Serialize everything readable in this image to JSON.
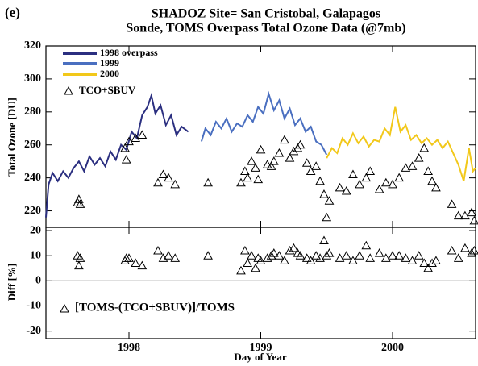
{
  "chart_data": [
    {
      "type": "line",
      "panel_label": "(e)",
      "title": "SHADOZ Site= San Cristobal, Galapagos",
      "subtitle": "Sonde, TOMS Overpass Total Ozone Data (@7mb)",
      "ylabel": "Total Ozone [DU]",
      "xlim": [
        1997.37,
        2000.63
      ],
      "ylim": [
        210,
        320
      ],
      "yticks": [
        220,
        240,
        260,
        280,
        300,
        320
      ],
      "series": [
        {
          "name": "1998 overpass",
          "color": "#2b2f80",
          "x": [
            1997.37,
            1997.39,
            1997.42,
            1997.46,
            1997.5,
            1997.54,
            1997.58,
            1997.62,
            1997.66,
            1997.7,
            1997.74,
            1997.78,
            1997.82,
            1997.86,
            1997.9,
            1997.94,
            1997.98,
            1998.02,
            1998.06,
            1998.1,
            1998.14,
            1998.17,
            1998.2,
            1998.24,
            1998.28,
            1998.32,
            1998.36,
            1998.4,
            1998.45
          ],
          "values": [
            216,
            236,
            243,
            238,
            244,
            240,
            246,
            250,
            244,
            253,
            248,
            252,
            247,
            256,
            251,
            260,
            257,
            268,
            264,
            278,
            283,
            290,
            279,
            284,
            272,
            278,
            266,
            271,
            268
          ]
        },
        {
          "name": "1999",
          "color": "#4a6fc0",
          "x": [
            1998.55,
            1998.58,
            1998.62,
            1998.66,
            1998.7,
            1998.74,
            1998.78,
            1998.82,
            1998.86,
            1998.9,
            1998.94,
            1998.98,
            1999.02,
            1999.06,
            1999.1,
            1999.14,
            1999.18,
            1999.22,
            1999.26,
            1999.3,
            1999.34,
            1999.38,
            1999.42,
            1999.46,
            1999.5
          ],
          "values": [
            262,
            270,
            266,
            274,
            270,
            276,
            268,
            273,
            271,
            278,
            274,
            283,
            279,
            291,
            281,
            287,
            276,
            282,
            272,
            276,
            268,
            271,
            262,
            260,
            254
          ]
        },
        {
          "name": "2000",
          "color": "#f2c81a",
          "x": [
            1999.5,
            1999.54,
            1999.58,
            1999.62,
            1999.66,
            1999.7,
            1999.74,
            1999.78,
            1999.82,
            1999.86,
            1999.9,
            1999.94,
            1999.98,
            2000.02,
            2000.06,
            2000.1,
            2000.14,
            2000.18,
            2000.22,
            2000.26,
            2000.3,
            2000.34,
            2000.38,
            2000.42,
            2000.46,
            2000.5,
            2000.54,
            2000.58,
            2000.61,
            2000.63
          ],
          "values": [
            252,
            258,
            255,
            264,
            260,
            267,
            261,
            265,
            259,
            263,
            262,
            270,
            266,
            283,
            268,
            272,
            263,
            266,
            261,
            264,
            260,
            263,
            258,
            262,
            255,
            248,
            238,
            258,
            244,
            246
          ]
        },
        {
          "name": "TCO+SBUV",
          "color": "#000000",
          "marker": "triangle",
          "x": [
            1997.61,
            1997.62,
            1997.63,
            1997.97,
            1997.98,
            1998.0,
            1998.05,
            1998.1,
            1998.22,
            1998.26,
            1998.3,
            1998.35,
            1998.6,
            1998.85,
            1998.88,
            1998.9,
            1998.93,
            1998.96,
            1998.98,
            1999.0,
            1999.05,
            1999.08,
            1999.1,
            1999.14,
            1999.18,
            1999.22,
            1999.25,
            1999.28,
            1999.3,
            1999.35,
            1999.38,
            1999.42,
            1999.45,
            1999.48,
            1999.5,
            1999.52,
            1999.6,
            1999.65,
            1999.7,
            1999.75,
            1999.8,
            1999.83,
            1999.9,
            1999.95,
            2000.0,
            2000.05,
            2000.1,
            2000.15,
            2000.2,
            2000.24,
            2000.27,
            2000.3,
            2000.33,
            2000.45,
            2000.5,
            2000.55,
            2000.6,
            2000.62
          ],
          "values": [
            225,
            227,
            224,
            258,
            251,
            262,
            264,
            266,
            237,
            242,
            240,
            236,
            237,
            237,
            244,
            240,
            250,
            246,
            239,
            257,
            248,
            247,
            250,
            255,
            263,
            252,
            256,
            258,
            260,
            249,
            244,
            247,
            238,
            230,
            216,
            226,
            234,
            232,
            242,
            236,
            240,
            244,
            233,
            237,
            236,
            240,
            246,
            247,
            252,
            258,
            244,
            238,
            234,
            224,
            217,
            217,
            219,
            214
          ]
        }
      ]
    },
    {
      "type": "scatter",
      "ylabel": "Diff [%]",
      "xlabel": "Day of Year",
      "xlim": [
        1997.37,
        2000.63
      ],
      "xticks": [
        1998,
        1999,
        2000
      ],
      "ylim": [
        -23,
        21.3
      ],
      "yticks": [
        -20,
        -10,
        0,
        10,
        20
      ],
      "series": [
        {
          "name": "[TOMS-(TCO+SBUV)]/TOMS",
          "color": "#000000",
          "marker": "triangle",
          "x": [
            1997.61,
            1997.62,
            1997.63,
            1997.97,
            1997.98,
            1998.0,
            1998.05,
            1998.1,
            1998.22,
            1998.26,
            1998.3,
            1998.35,
            1998.6,
            1998.85,
            1998.88,
            1998.9,
            1998.93,
            1998.96,
            1998.98,
            1999.0,
            1999.05,
            1999.08,
            1999.1,
            1999.14,
            1999.18,
            1999.22,
            1999.25,
            1999.28,
            1999.3,
            1999.35,
            1999.38,
            1999.42,
            1999.45,
            1999.48,
            1999.5,
            1999.52,
            1999.6,
            1999.65,
            1999.7,
            1999.75,
            1999.8,
            1999.83,
            1999.9,
            1999.95,
            2000.0,
            2000.05,
            2000.1,
            2000.15,
            2000.2,
            2000.24,
            2000.27,
            2000.3,
            2000.33,
            2000.45,
            2000.5,
            2000.55,
            2000.6,
            2000.62
          ],
          "values": [
            10,
            6,
            9,
            8,
            9,
            9,
            7,
            6,
            12,
            9,
            10,
            9,
            10,
            4,
            12,
            7,
            10,
            5,
            9,
            8,
            9,
            10,
            11,
            10,
            8,
            12,
            13,
            11,
            10,
            9,
            8,
            10,
            9,
            16,
            10,
            11,
            9,
            10,
            8,
            10,
            14,
            9,
            11,
            9,
            10,
            10,
            9,
            8,
            10,
            7,
            5,
            7,
            8,
            12,
            9,
            13,
            11,
            12
          ]
        }
      ]
    }
  ]
}
